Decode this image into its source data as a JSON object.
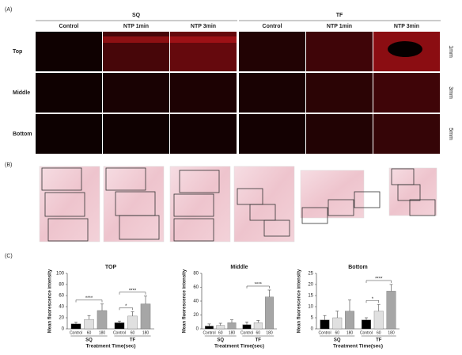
{
  "panel_a": {
    "label": "(A)",
    "groups": [
      "SQ",
      "TF"
    ],
    "columns": [
      "Control",
      "NTP 1min",
      "NTP 3min",
      "Control",
      "NTP 1min",
      "NTP 3min"
    ],
    "rows": [
      "Top",
      "Middle",
      "Bottom"
    ],
    "depths": [
      "1mm",
      "3mm",
      "5mm"
    ]
  },
  "panel_b": {
    "label": "(B)"
  },
  "panel_c": {
    "label": "(C)"
  },
  "chart_data": [
    {
      "type": "bar",
      "title": "TOP",
      "ylabel": "Mean fluorescence intensity",
      "xlabel": "Treatment Time(sec)",
      "groups": [
        "SQ",
        "TF"
      ],
      "categories": [
        "Control",
        "60",
        "180",
        "Control",
        "60",
        "180"
      ],
      "colors": [
        "#000000",
        "#e0e0e0",
        "#a6a6a6",
        "#000000",
        "#e0e0e0",
        "#a6a6a6"
      ],
      "values": [
        9,
        17,
        33,
        11,
        23,
        45
      ],
      "errors": [
        3,
        7,
        12,
        3,
        8,
        14
      ],
      "ylim": [
        0,
        100
      ],
      "yticks": [
        0,
        20,
        40,
        60,
        80,
        100
      ],
      "annotations": [
        {
          "label": "****"
        },
        {
          "label": "*"
        },
        {
          "label": "****"
        }
      ]
    },
    {
      "type": "bar",
      "title": "Middle",
      "ylabel": "Mean fluorescence intensity",
      "xlabel": "Treatment Time(sec)",
      "groups": [
        "SQ",
        "TF"
      ],
      "categories": [
        "Control",
        "60",
        "180",
        "Control",
        "60",
        "180"
      ],
      "colors": [
        "#000000",
        "#e0e0e0",
        "#a6a6a6",
        "#000000",
        "#e0e0e0",
        "#a6a6a6"
      ],
      "values": [
        4,
        5,
        9,
        6,
        9,
        46
      ],
      "errors": [
        3,
        3,
        4,
        4,
        3,
        10
      ],
      "ylim": [
        0,
        80
      ],
      "yticks": [
        0,
        20,
        40,
        60,
        80
      ],
      "annotations": [
        {
          "label": "****"
        }
      ]
    },
    {
      "type": "bar",
      "title": "Bottom",
      "ylabel": "Mean fluorescence intensity",
      "xlabel": "Treatment Time(sec)",
      "groups": [
        "SQ",
        "TF"
      ],
      "categories": [
        "Control",
        "60",
        "180",
        "Control",
        "60",
        "180"
      ],
      "colors": [
        "#000000",
        "#e0e0e0",
        "#a6a6a6",
        "#000000",
        "#e0e0e0",
        "#a6a6a6"
      ],
      "values": [
        4,
        5,
        8,
        4,
        8,
        17
      ],
      "errors": [
        2,
        3,
        5,
        1,
        3,
        3
      ],
      "ylim": [
        0,
        25
      ],
      "yticks": [
        0,
        5,
        10,
        15,
        20,
        25
      ],
      "annotations": [
        {
          "label": "*"
        },
        {
          "label": "****"
        }
      ]
    }
  ]
}
